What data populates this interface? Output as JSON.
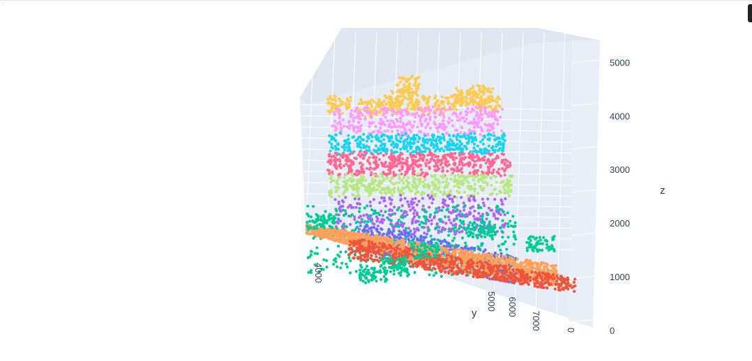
{
  "chart_data": {
    "type": "scatter",
    "subtype": "scatter3d",
    "title": "",
    "axes": {
      "x": {
        "title": "",
        "ticks": [
          "0"
        ]
      },
      "y": {
        "title": "y",
        "ticks": [
          "4000",
          "5000",
          "6000",
          "7000"
        ],
        "range": [
          3600,
          8000
        ]
      },
      "z": {
        "title": "z",
        "ticks": [
          "0",
          "1000",
          "2000",
          "3000",
          "4000",
          "5000"
        ],
        "range": [
          0,
          5200
        ]
      }
    },
    "series": [
      {
        "color": "#FECB52",
        "z_band": [
          4100,
          4750
        ],
        "shape": "top-crest"
      },
      {
        "color": "#FF97FF",
        "z_band": [
          3650,
          4150
        ]
      },
      {
        "color": "#19D3F3",
        "z_band": [
          3300,
          3650
        ]
      },
      {
        "color": "#FF6692",
        "z_band": [
          2900,
          3300
        ]
      },
      {
        "color": "#B6E880",
        "z_band": [
          2500,
          2900
        ]
      },
      {
        "color": "#AB63FA",
        "z_band": [
          1800,
          2500
        ]
      },
      {
        "color": "#00CC96",
        "z_band": [
          1000,
          2300
        ]
      },
      {
        "color": "#636EFA",
        "z_band": [
          900,
          1800
        ]
      },
      {
        "color": "#EF553B",
        "z_band": [
          0,
          1500
        ],
        "shape": "floor-sheet"
      },
      {
        "color": "#FFA15A",
        "z_band": [
          0,
          1900
        ],
        "shape": "floor-sheet"
      }
    ],
    "grid": true,
    "background": "#E5ECF6",
    "legend": "none"
  }
}
